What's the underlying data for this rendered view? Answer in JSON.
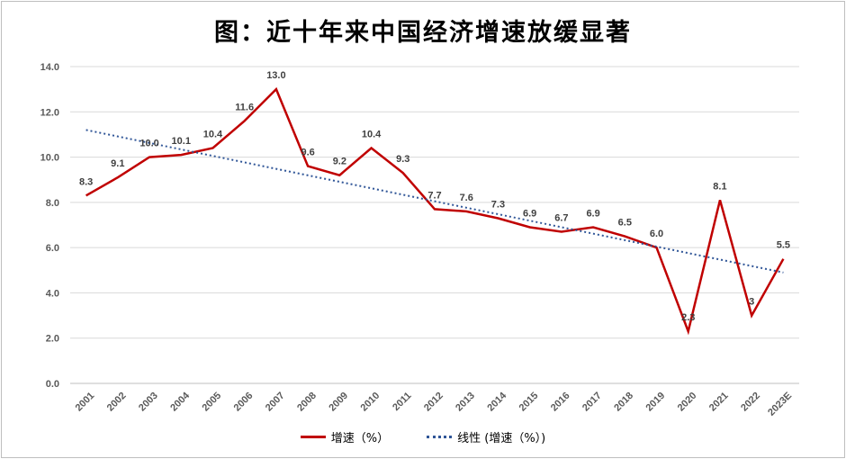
{
  "chart_data": {
    "type": "line",
    "title": "图：近十年来中国经济增速放缓显著",
    "categories": [
      "2001",
      "2002",
      "2003",
      "2004",
      "2005",
      "2006",
      "2007",
      "2008",
      "2009",
      "2010",
      "2011",
      "2012",
      "2013",
      "2014",
      "2015",
      "2016",
      "2017",
      "2018",
      "2019",
      "2020",
      "2021",
      "2022",
      "2023E"
    ],
    "series": [
      {
        "name": "增速（%）",
        "color": "#c00000",
        "values": [
          8.3,
          9.1,
          10.0,
          10.1,
          10.4,
          11.6,
          13.0,
          9.6,
          9.2,
          10.4,
          9.3,
          7.7,
          7.6,
          7.3,
          6.9,
          6.7,
          6.9,
          6.5,
          6.0,
          2.3,
          8.1,
          3.0,
          5.5
        ],
        "labels": [
          "8.3",
          "9.1",
          "10.0",
          "10.1",
          "10.4",
          "11.6",
          "13.0",
          "9.6",
          "9.2",
          "10.4",
          "9.3",
          "7.7",
          "7.6",
          "7.3",
          "6.9",
          "6.7",
          "6.9",
          "6.5",
          "6.0",
          "2.3",
          "8.1",
          "3",
          "5.5"
        ]
      },
      {
        "name": "线性 (增速（%）)",
        "color": "#2f5597",
        "style": "dotted",
        "trend_endpoints": [
          11.2,
          4.9
        ]
      }
    ],
    "ylim": [
      0,
      14
    ],
    "yticks": [
      "0.0",
      "2.0",
      "4.0",
      "6.0",
      "8.0",
      "10.0",
      "12.0",
      "14.0"
    ],
    "grid": true,
    "legend_position": "bottom"
  }
}
